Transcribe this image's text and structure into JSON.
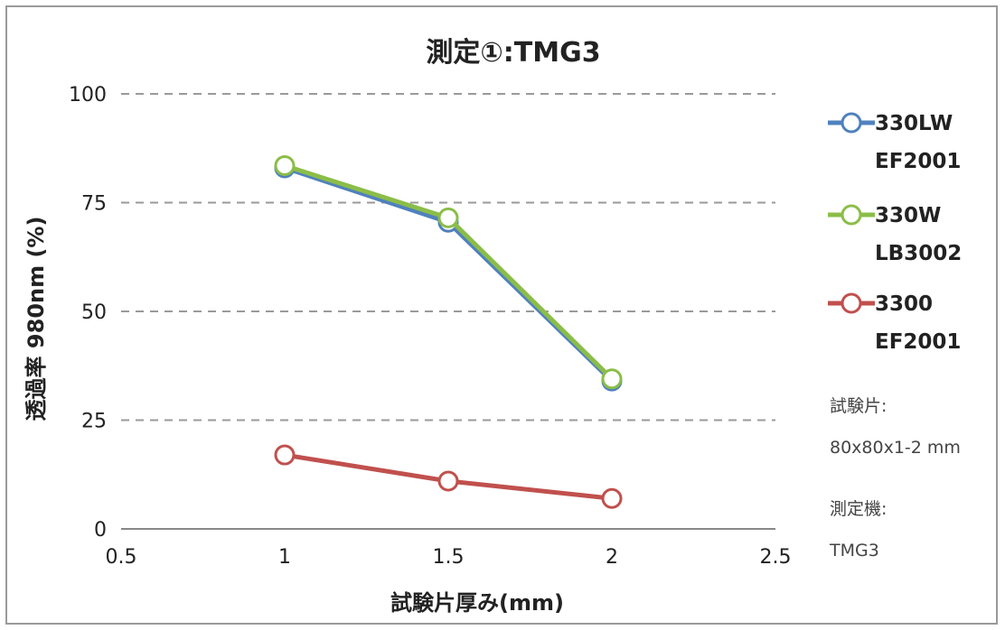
{
  "chart_data": {
    "type": "line",
    "title": "測定①:TMG3",
    "xlabel": "試験片厚み(mm)",
    "ylabel": "透過率 980nm (%)",
    "xlim": [
      0.5,
      2.5
    ],
    "ylim": [
      0,
      100
    ],
    "xticks": [
      "0.5",
      "1",
      "1.5",
      "2",
      "2.5"
    ],
    "yticks": [
      "0",
      "25",
      "50",
      "75",
      "100"
    ],
    "x": [
      1,
      1.5,
      2
    ],
    "grid": "horizontal dashed",
    "legend_position": "right",
    "series": [
      {
        "name_line1": "330LW",
        "name_line2": "EF2001",
        "values": [
          83,
          70.5,
          34
        ],
        "color": "#4f81bd"
      },
      {
        "name_line1": "330W",
        "name_line2": "LB3002",
        "values": [
          83.5,
          71.5,
          34.5
        ],
        "color": "#8bbd48"
      },
      {
        "name_line1": "3300",
        "name_line2": "EF2001",
        "values": [
          17,
          11,
          7
        ],
        "color": "#c0504d"
      }
    ]
  },
  "notes": {
    "specimen_label": "試験片:",
    "specimen_value": "80x80x1-2 mm",
    "device_label": "測定機:",
    "device_value": "TMG3"
  }
}
